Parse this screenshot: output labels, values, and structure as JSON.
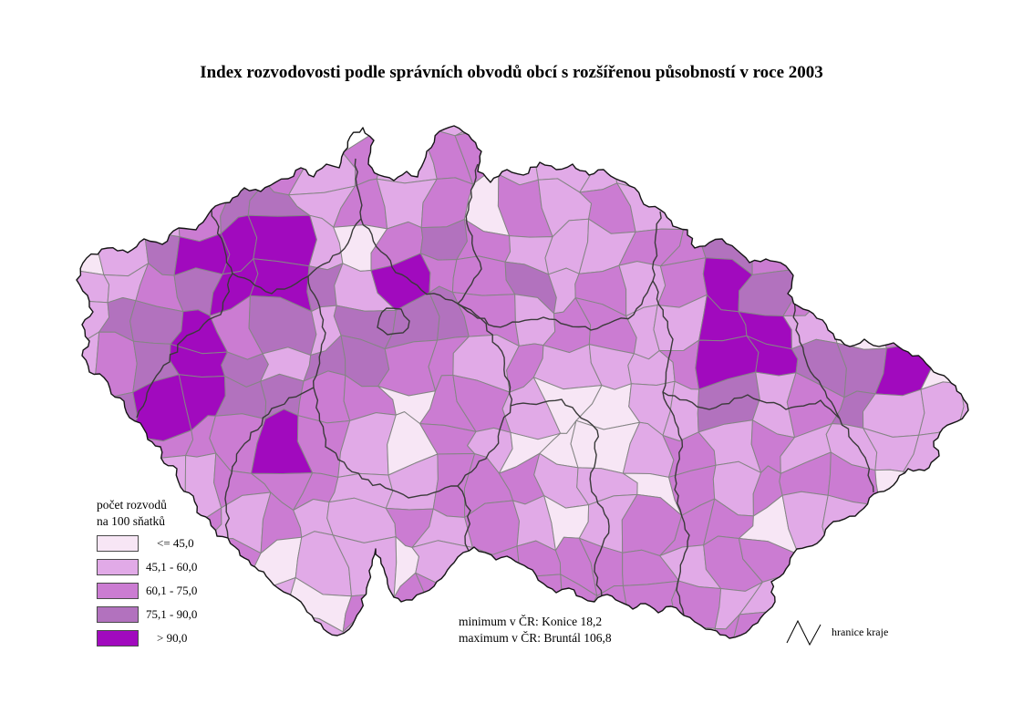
{
  "title": "Index rozvodovosti podle správních obvodů obcí s rozšířenou působností v roce 2003",
  "legend": {
    "title_line1": "počet rozvodů",
    "title_line2": "na 100 sňatků",
    "classes": [
      {
        "label": "<= 45,0",
        "color": "#F7E6F5"
      },
      {
        "label": "45,1 - 60,0",
        "color": "#E1AAE7"
      },
      {
        "label": "60,1 - 75,0",
        "color": "#CB7CD2"
      },
      {
        "label": "75,1 - 90,0",
        "color": "#B272BE"
      },
      {
        "label": "> 90,0",
        "color": "#A10ABE"
      }
    ]
  },
  "annotations": {
    "minimum": "minimum v ČR: Konice 18,2",
    "maximum": "maximum v ČR: Bruntál 106,8"
  },
  "map_legend": {
    "kraj_boundary_label": "hranice kraje"
  },
  "map": {
    "background": "#FFFFFF",
    "district_border_color": "#858585",
    "kraj_border_color": "#3a3a3a",
    "outline_color": "#151515"
  },
  "chart_data": {
    "type": "choropleth_map",
    "title": "Index rozvodovosti podle správních obvodů obcí s rozšířenou působností v roce 2003",
    "legend_title": "počet rozvodů na 100 sňatků",
    "classes": [
      "<= 45,0",
      "45,1 - 60,0",
      "60,1 - 75,0",
      "75,1 - 90,0",
      "> 90,0"
    ],
    "class_colors": [
      "#F7E6F5",
      "#E1AAE7",
      "#CB7CD2",
      "#B272BE",
      "#A10ABE"
    ],
    "extremes": {
      "minimum": {
        "district": "Konice",
        "value": "18,2"
      },
      "maximum": {
        "district": "Bruntál",
        "value": "106,8"
      }
    }
  }
}
